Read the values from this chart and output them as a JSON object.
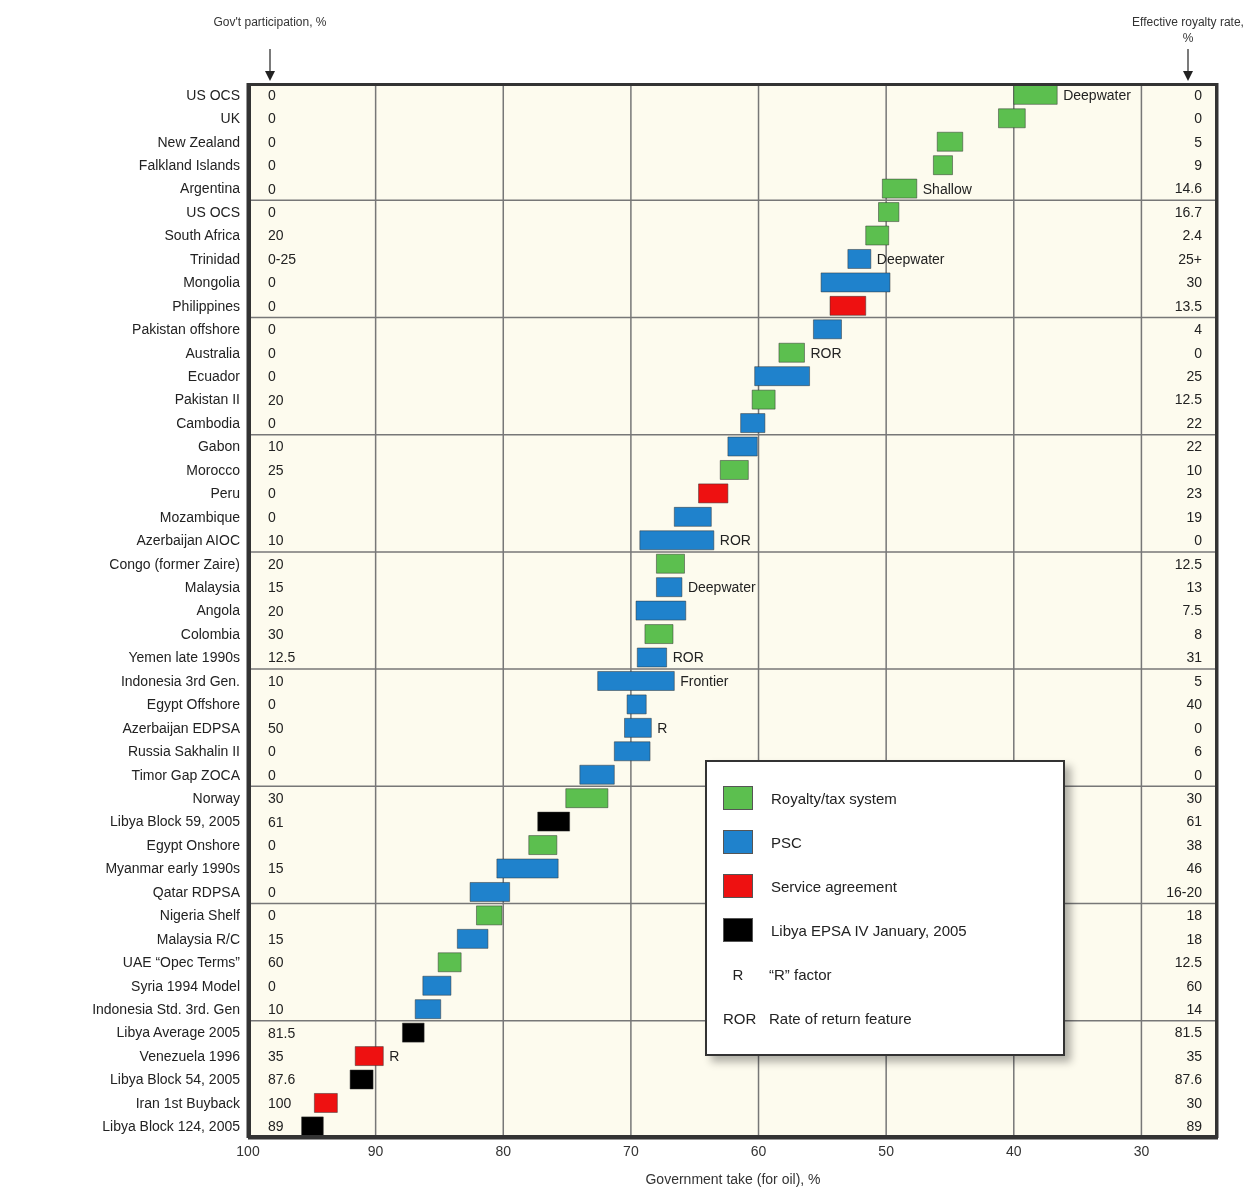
{
  "chart_data": {
    "type": "bar",
    "orientation": "horizontal",
    "xlabel": "Government take (for oil), %",
    "ylabel": "Gov't participation, %",
    "y2label": "Effective royalty rate, %",
    "categories": [
      "US OCS",
      "UK",
      "New Zealand",
      "Falkland Islands",
      "Argentina",
      "US OCS",
      "South Africa",
      "Trinidad",
      "Mongolia",
      "Philippines",
      "Pakistan offshore",
      "Australia",
      "Ecuador",
      "Pakistan II",
      "Cambodia",
      "Gabon",
      "Morocco",
      "Peru",
      "Mozambique",
      "Azerbaijan AIOC",
      "Congo (former Zaire)",
      "Malaysia",
      "Angola",
      "Colombia",
      "Yemen late 1990s",
      "Indonesia 3rd Gen.",
      "Egypt Offshore",
      "Azerbaijan EDPSA",
      "Russia Sakhalin II",
      "Timor Gap ZOCA",
      "Norway",
      "Libya Block 59, 2005",
      "Egypt Onshore",
      "Myanmar early 1990s",
      "Qatar RDPSA",
      "Nigeria Shelf",
      "Malaysia R/C",
      "UAE “Opec Terms”",
      "Syria 1994 Model",
      "Indonesia Std. 3rd. Gen",
      "Libya Average 2005",
      "Venezuela 1996",
      "Libya Block 54, 2005",
      "Iran 1st Buyback",
      "Libya Block 124, 2005"
    ],
    "y2_categories": [
      "0",
      "0",
      "5",
      "9",
      "14.6",
      "16.7",
      "2.4",
      "25+",
      "30",
      "13.5",
      "4",
      "0",
      "25",
      "12.5",
      "22",
      "22",
      "10",
      "23",
      "19",
      "0",
      "12.5",
      "13",
      "7.5",
      "8",
      "31",
      "5",
      "40",
      "0",
      "6",
      "0",
      "30",
      "61",
      "38",
      "46",
      "16-20",
      "18",
      "18",
      "12.5",
      "60",
      "14",
      "81.5",
      "35",
      "87.6",
      "30",
      "89"
    ],
    "series": [
      {
        "name": "Royalty/tax system",
        "color": "#5cbf4f",
        "base": [
          36.6,
          39.1,
          44.0,
          44.8,
          47.6,
          49.0,
          49.8,
          null,
          null,
          null,
          null,
          56.4,
          null,
          58.7,
          null,
          null,
          60.8,
          null,
          null,
          null,
          65.8,
          null,
          null,
          66.7,
          null,
          null,
          null,
          null,
          null,
          null,
          71.8,
          null,
          75.8,
          null,
          null,
          80.1,
          null,
          83.3,
          null,
          null,
          null,
          null,
          null,
          null,
          null
        ],
        "values": [
          3.4,
          2.1,
          2.0,
          1.5,
          2.7,
          1.6,
          1.8,
          null,
          null,
          null,
          null,
          2.0,
          null,
          1.8,
          null,
          null,
          2.2,
          null,
          null,
          null,
          2.2,
          null,
          null,
          2.2,
          null,
          null,
          null,
          null,
          null,
          null,
          3.3,
          null,
          2.2,
          null,
          null,
          2.0,
          null,
          1.8,
          null,
          null,
          null,
          null,
          null,
          null,
          null
        ]
      },
      {
        "name": "PSC",
        "color": "#1f82cc",
        "base": [
          null,
          null,
          null,
          null,
          null,
          null,
          null,
          51.2,
          49.7,
          null,
          53.5,
          null,
          56.0,
          null,
          59.5,
          60.1,
          null,
          null,
          63.7,
          63.5,
          null,
          66.0,
          65.7,
          null,
          67.2,
          66.6,
          68.8,
          68.4,
          68.5,
          71.3,
          null,
          null,
          null,
          75.7,
          79.5,
          null,
          81.2,
          null,
          84.1,
          84.9,
          null,
          null,
          null,
          null,
          null
        ],
        "values": [
          null,
          null,
          null,
          null,
          null,
          null,
          null,
          1.8,
          5.4,
          null,
          2.2,
          null,
          4.3,
          null,
          1.9,
          2.3,
          null,
          null,
          2.9,
          5.8,
          null,
          2.0,
          3.9,
          null,
          2.3,
          6.0,
          1.5,
          2.1,
          2.8,
          2.7,
          null,
          null,
          null,
          4.8,
          3.1,
          null,
          2.4,
          null,
          2.2,
          2.0,
          null,
          null,
          null,
          null,
          null
        ]
      },
      {
        "name": "Service agreement",
        "color": "#ee1111",
        "base": [
          null,
          null,
          null,
          null,
          null,
          null,
          null,
          null,
          null,
          51.6,
          null,
          null,
          null,
          null,
          null,
          null,
          null,
          62.4,
          null,
          null,
          null,
          null,
          null,
          null,
          null,
          null,
          null,
          null,
          null,
          null,
          null,
          null,
          null,
          null,
          null,
          null,
          null,
          null,
          null,
          null,
          null,
          89.4,
          null,
          93.0,
          null
        ],
        "values": [
          null,
          null,
          null,
          null,
          null,
          null,
          null,
          null,
          null,
          2.8,
          null,
          null,
          null,
          null,
          null,
          null,
          null,
          2.3,
          null,
          null,
          null,
          null,
          null,
          null,
          null,
          null,
          null,
          null,
          null,
          null,
          null,
          null,
          null,
          null,
          null,
          null,
          null,
          null,
          null,
          null,
          null,
          2.2,
          null,
          1.8,
          null
        ]
      },
      {
        "name": "Libya EPSA IV January, 2005",
        "color": "#000000",
        "base": [
          null,
          null,
          null,
          null,
          null,
          null,
          null,
          null,
          null,
          null,
          null,
          null,
          null,
          null,
          null,
          null,
          null,
          null,
          null,
          null,
          null,
          null,
          null,
          null,
          null,
          null,
          null,
          null,
          null,
          null,
          null,
          74.8,
          null,
          null,
          null,
          null,
          null,
          null,
          null,
          null,
          86.2,
          null,
          90.2,
          null,
          94.1
        ],
        "values": [
          null,
          null,
          null,
          null,
          null,
          null,
          null,
          null,
          null,
          null,
          null,
          null,
          null,
          null,
          null,
          null,
          null,
          null,
          null,
          null,
          null,
          null,
          null,
          null,
          null,
          null,
          null,
          null,
          null,
          null,
          null,
          2.5,
          null,
          null,
          null,
          null,
          null,
          null,
          null,
          null,
          1.7,
          null,
          1.8,
          null,
          1.7
        ]
      }
    ],
    "xlim": [
      100,
      24
    ],
    "xticks": [
      100,
      90,
      80,
      70,
      60,
      50,
      40,
      30
    ],
    "grid": true,
    "legend": "bottom right",
    "annotations": [
      "0\n0\n0\n0\n0\n0\n20\n0-25\n0\n0\n0\n0\n0\n20\n0\n10\n25\n0\n0\n10\n20\n15\n20\n30\n12.5\n10\n0\n50\n0\n0\n30\n61\n0\n15\n0\n0\n15\n60\n0\n10\n81.5\n35\n87.6\n100\n89",
      "R “R” factor",
      "ROR Rate of return feature",
      {
        "text": "Deepwater",
        "x": 36.6,
        "y": "US OCS"
      },
      {
        "text": "Shallow",
        "x": 47.6,
        "y": "Argentina"
      },
      {
        "text": "Deepwater",
        "x": 51.2,
        "y": "Trinidad"
      },
      {
        "text": "ROR",
        "x": 56.4,
        "y": "Australia"
      },
      {
        "text": "ROR",
        "x": 63.5,
        "y": "Azerbaijan AIOC"
      },
      {
        "text": "Deepwater",
        "x": 66.0,
        "y": "Malaysia"
      },
      {
        "text": "ROR",
        "x": 67.2,
        "y": "Yemen late 1990s"
      },
      {
        "text": "Frontier",
        "x": 66.6,
        "y": "Indonesia 3rd Gen."
      },
      {
        "text": "R",
        "x": 68.4,
        "y": "Azerbaijan EDPSA"
      },
      {
        "text": "R",
        "x": 89.4,
        "y": "Venezuela 1996"
      }
    ]
  }
}
